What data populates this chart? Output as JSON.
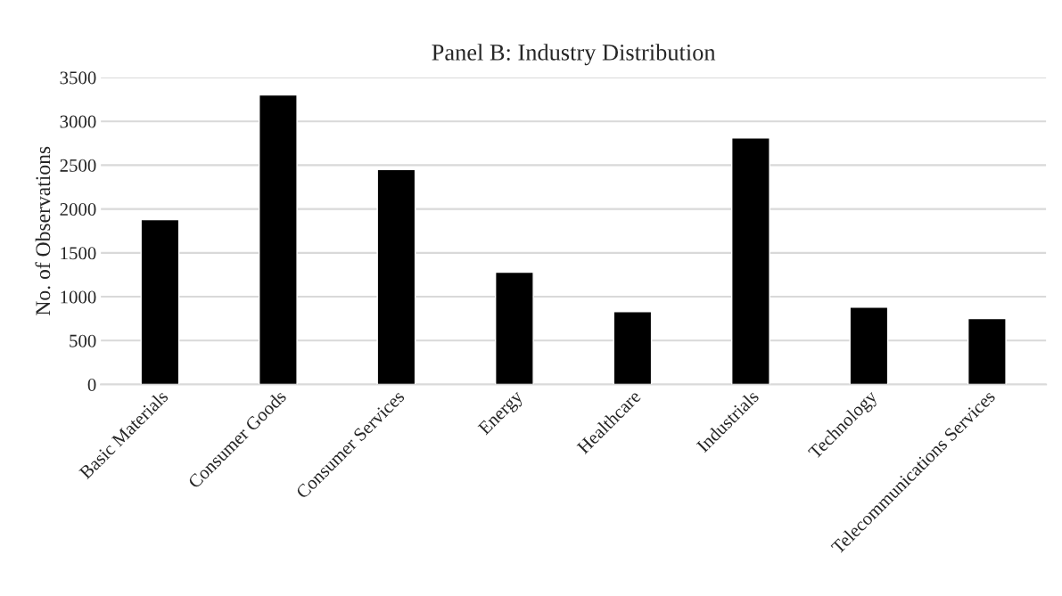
{
  "chart_data": {
    "type": "bar",
    "title": "Panel B: Industry Distribution",
    "ylabel": "No. of Observations",
    "categories": [
      "Basic Materials",
      "Consumer Goods",
      "Consumer Services",
      "Energy",
      "Healthcare",
      "Industrials",
      "Technology",
      "Telecommunications Services"
    ],
    "values": [
      1880,
      3300,
      2450,
      1280,
      830,
      2810,
      880,
      750
    ],
    "color": "#000000",
    "ylim": [
      0,
      3500
    ],
    "yticks": [
      0,
      500,
      1000,
      1500,
      2000,
      2500,
      3000,
      3500
    ],
    "grid": "y"
  }
}
